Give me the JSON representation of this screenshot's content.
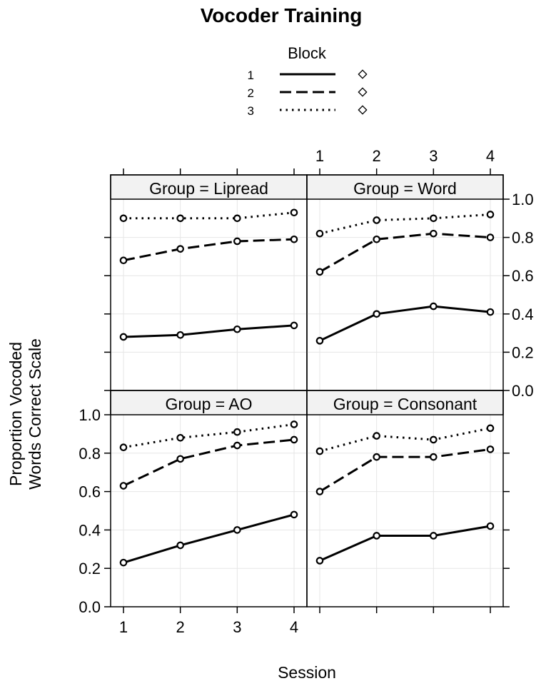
{
  "chart_data": {
    "type": "line",
    "title": "Vocoder Training",
    "xlabel": "Session",
    "ylabel_lines": [
      "Proportion Vocoded",
      "Words Correct Scale"
    ],
    "x": [
      1,
      2,
      3,
      4
    ],
    "x_tick_labels": [
      "1",
      "2",
      "3",
      "4"
    ],
    "ylim": [
      0,
      1
    ],
    "y_ticks": [
      0.0,
      0.2,
      0.4,
      0.6,
      0.8,
      1.0
    ],
    "y_tick_labels": [
      "0.0",
      "0.2",
      "0.4",
      "0.6",
      "0.8",
      "1.0"
    ],
    "grid": true,
    "legend": {
      "title": "Block",
      "placement": "top",
      "entries": [
        {
          "label": "1",
          "line_style": "solid"
        },
        {
          "label": "2",
          "line_style": "dashed"
        },
        {
          "label": "3",
          "line_style": "dotted"
        }
      ]
    },
    "panels": [
      {
        "label": "Group = Lipread",
        "series": [
          {
            "block": "1",
            "values": [
              0.28,
              0.29,
              0.32,
              0.34
            ]
          },
          {
            "block": "2",
            "values": [
              0.68,
              0.74,
              0.78,
              0.79
            ]
          },
          {
            "block": "3",
            "values": [
              0.9,
              0.9,
              0.9,
              0.93
            ]
          }
        ]
      },
      {
        "label": "Group = Word",
        "series": [
          {
            "block": "1",
            "values": [
              0.26,
              0.4,
              0.44,
              0.41
            ]
          },
          {
            "block": "2",
            "values": [
              0.62,
              0.79,
              0.82,
              0.8
            ]
          },
          {
            "block": "3",
            "values": [
              0.82,
              0.89,
              0.9,
              0.92
            ]
          }
        ]
      },
      {
        "label": "Group = AO",
        "series": [
          {
            "block": "1",
            "values": [
              0.23,
              0.32,
              0.4,
              0.48
            ]
          },
          {
            "block": "2",
            "values": [
              0.63,
              0.77,
              0.84,
              0.87
            ]
          },
          {
            "block": "3",
            "values": [
              0.83,
              0.88,
              0.91,
              0.95
            ]
          }
        ]
      },
      {
        "label": "Group = Consonant",
        "series": [
          {
            "block": "1",
            "values": [
              0.24,
              0.37,
              0.37,
              0.42
            ]
          },
          {
            "block": "2",
            "values": [
              0.6,
              0.78,
              0.78,
              0.82
            ]
          },
          {
            "block": "3",
            "values": [
              0.81,
              0.89,
              0.87,
              0.93
            ]
          }
        ]
      }
    ]
  }
}
